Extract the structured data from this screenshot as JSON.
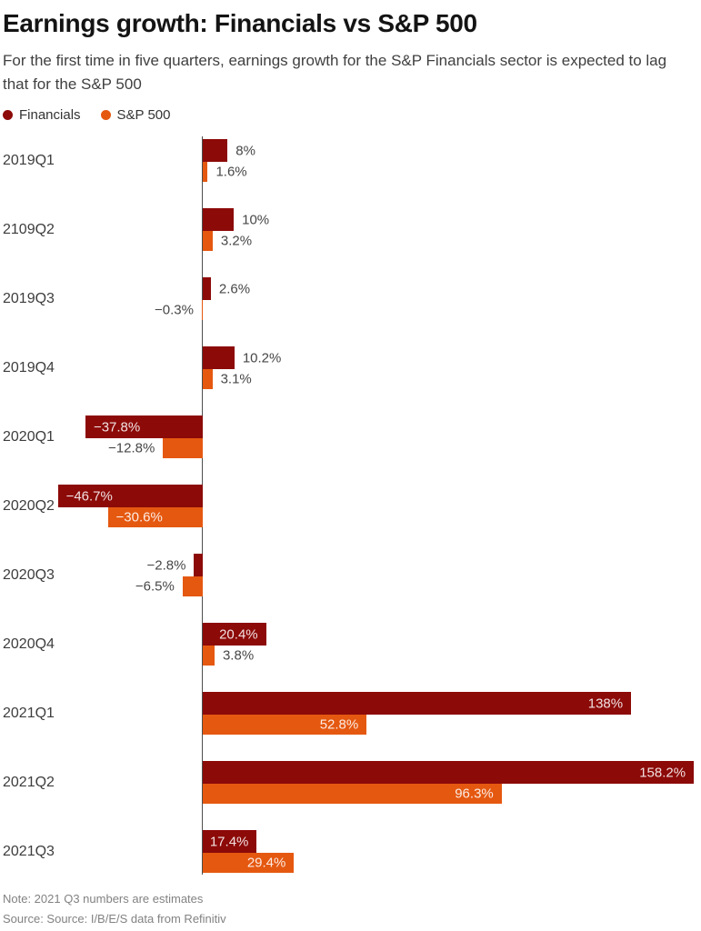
{
  "header": {
    "title": "Earnings growth: Financials vs S&P 500",
    "subtitle": "For the first time in five quarters, earnings growth for the S&P Financials sector is expected to lag that for the S&P 500"
  },
  "legend": [
    {
      "label": "Financials",
      "color": "#8c0a08"
    },
    {
      "label": "S&P 500",
      "color": "#e55810"
    }
  ],
  "chart_data": {
    "type": "bar",
    "orientation": "horizontal",
    "title": "Earnings growth: Financials vs S&P 500",
    "categories": [
      "2019Q1",
      "2109Q2",
      "2019Q3",
      "2019Q4",
      "2020Q1",
      "2020Q2",
      "2020Q3",
      "2020Q4",
      "2021Q1",
      "2021Q2",
      "2021Q3"
    ],
    "series": [
      {
        "name": "Financials",
        "color": "#8c0a08",
        "values": [
          8,
          10,
          2.6,
          10.2,
          -37.8,
          -46.7,
          -2.8,
          20.4,
          138,
          158.2,
          17.4
        ],
        "labels": [
          "8%",
          "10%",
          "2.6%",
          "10.2%",
          "−37.8%",
          "−46.7%",
          "−2.8%",
          "20.4%",
          "138%",
          "158.2%",
          "17.4%"
        ]
      },
      {
        "name": "S&P 500",
        "color": "#e55810",
        "values": [
          1.6,
          3.2,
          -0.3,
          3.1,
          -12.8,
          -30.6,
          -6.5,
          3.8,
          52.8,
          96.3,
          29.4
        ],
        "labels": [
          "1.6%",
          "3.2%",
          "−0.3%",
          "3.1%",
          "−12.8%",
          "−30.6%",
          "−6.5%",
          "3.8%",
          "52.8%",
          "96.3%",
          "29.4%"
        ]
      }
    ],
    "unit": "%",
    "xlim": [
      -65.3,
      160.5
    ],
    "grid": false,
    "axis_labels_visible": false,
    "legend_position": "top-left",
    "value_labels": "on-bars"
  },
  "footer": {
    "note": "Note: 2021 Q3 numbers are estimates",
    "source": "Source: Source: I/B/E/S data from Refinitiv"
  }
}
